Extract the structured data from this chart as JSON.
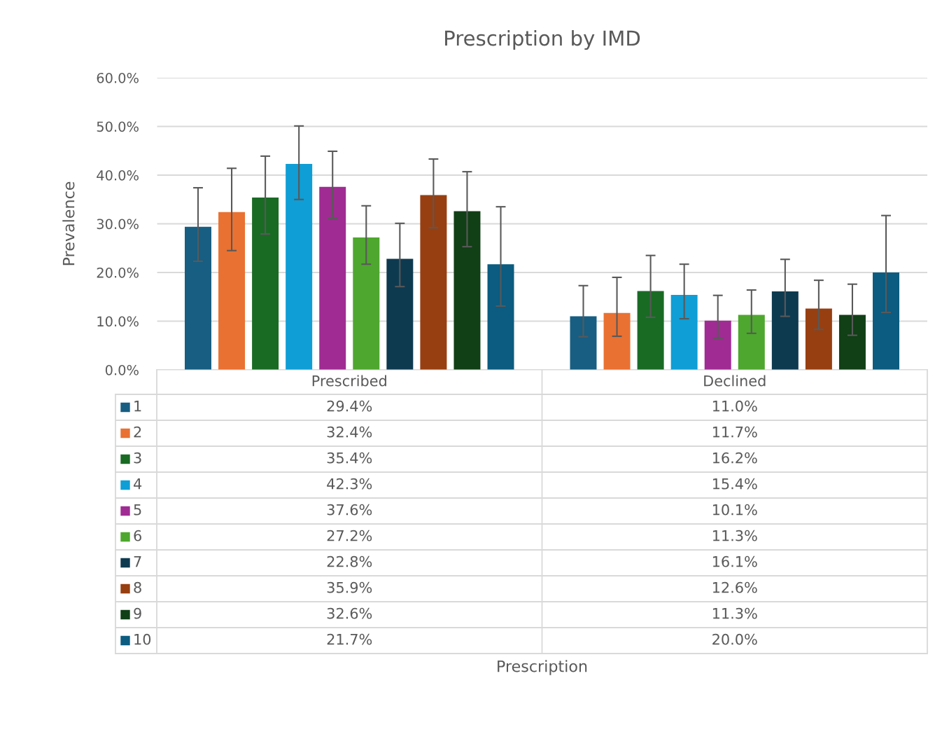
{
  "chart_data": {
    "type": "bar",
    "title": "Prescription by IMD",
    "annotations": [
      "Prescription"
    ],
    "ylabel": "Prevalence",
    "categories": [
      "Prescribed",
      "Declined"
    ],
    "series": [
      {
        "name": "1",
        "color": "#175e82",
        "values": [
          29.4,
          11.0
        ],
        "value_labels": [
          "29.4%",
          "11.0%"
        ],
        "errors": [
          [
            22.3,
            37.4
          ],
          [
            6.8,
            17.3
          ]
        ]
      },
      {
        "name": "2",
        "color": "#e97132",
        "values": [
          32.4,
          11.7
        ],
        "value_labels": [
          "32.4%",
          "11.7%"
        ],
        "errors": [
          [
            24.5,
            41.4
          ],
          [
            6.9,
            19.0
          ]
        ]
      },
      {
        "name": "3",
        "color": "#196b24",
        "values": [
          35.4,
          16.2
        ],
        "value_labels": [
          "35.4%",
          "16.2%"
        ],
        "errors": [
          [
            27.9,
            43.9
          ],
          [
            10.8,
            23.5
          ]
        ]
      },
      {
        "name": "4",
        "color": "#0f9ed5",
        "values": [
          42.3,
          15.4
        ],
        "value_labels": [
          "42.3%",
          "15.4%"
        ],
        "errors": [
          [
            35.0,
            50.1
          ],
          [
            10.5,
            21.7
          ]
        ]
      },
      {
        "name": "5",
        "color": "#a02b93",
        "values": [
          37.6,
          10.1
        ],
        "value_labels": [
          "37.6%",
          "10.1%"
        ],
        "errors": [
          [
            31.1,
            44.9
          ],
          [
            6.5,
            15.3
          ]
        ]
      },
      {
        "name": "6",
        "color": "#4ea72e",
        "values": [
          27.2,
          11.3
        ],
        "value_labels": [
          "27.2%",
          "11.3%"
        ],
        "errors": [
          [
            21.7,
            33.7
          ],
          [
            7.5,
            16.4
          ]
        ]
      },
      {
        "name": "7",
        "color": "#0e3a50",
        "values": [
          22.8,
          16.1
        ],
        "value_labels": [
          "22.8%",
          "16.1%"
        ],
        "errors": [
          [
            17.1,
            30.1
          ],
          [
            11.0,
            22.7
          ]
        ]
      },
      {
        "name": "8",
        "color": "#973f11",
        "values": [
          35.9,
          12.6
        ],
        "value_labels": [
          "35.9%",
          "12.6%"
        ],
        "errors": [
          [
            29.2,
            43.3
          ],
          [
            8.3,
            18.4
          ]
        ]
      },
      {
        "name": "9",
        "color": "#113f16",
        "values": [
          32.6,
          11.3
        ],
        "value_labels": [
          "32.6%",
          "11.3%"
        ],
        "errors": [
          [
            25.3,
            40.7
          ],
          [
            7.1,
            17.6
          ]
        ]
      },
      {
        "name": "10",
        "color": "#0b5c80",
        "values": [
          21.7,
          20.0
        ],
        "value_labels": [
          "21.7%",
          "20.0%"
        ],
        "errors": [
          [
            13.1,
            33.5
          ],
          [
            11.8,
            31.7
          ]
        ]
      }
    ],
    "ylim": [
      0,
      60
    ],
    "yticks": [
      {
        "value": 0,
        "label": "0.0%"
      },
      {
        "value": 10,
        "label": "10.0%"
      },
      {
        "value": 20,
        "label": "20.0%"
      },
      {
        "value": 30,
        "label": "30.0%"
      },
      {
        "value": 40,
        "label": "40.0%"
      },
      {
        "value": 50,
        "label": "50.0%"
      },
      {
        "value": 60,
        "label": "60.0%"
      }
    ],
    "grid": "y",
    "legend": "bottom"
  }
}
